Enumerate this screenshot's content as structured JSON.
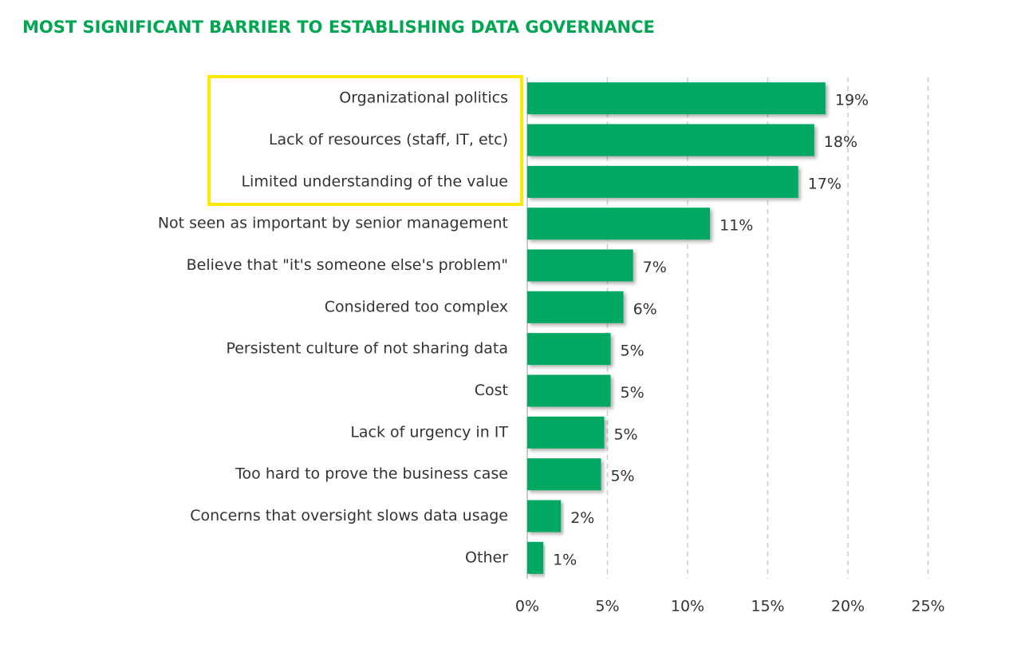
{
  "chart_data": {
    "type": "hbar",
    "title": "MOST SIGNIFICANT BARRIER TO ESTABLISHING DATA GOVERNANCE",
    "categories": [
      "Organizational politics",
      "Lack of resources (staff, IT, etc)",
      "Limited understanding of the value",
      "Not seen as important by senior management",
      "Believe that \"it's someone else's problem\"",
      "Considered too complex",
      "Persistent culture of not sharing data",
      "Cost",
      "Lack of urgency in IT",
      "Too hard to prove the business case",
      "Concerns that oversight slows data usage",
      "Other"
    ],
    "values": [
      18.6,
      17.9,
      16.9,
      11.4,
      6.6,
      6.0,
      5.2,
      5.2,
      4.8,
      4.6,
      2.1,
      1.0
    ],
    "value_labels": [
      "19%",
      "18%",
      "17%",
      "11%",
      "7%",
      "6%",
      "5%",
      "5%",
      "5%",
      "5%",
      "2%",
      "1%"
    ],
    "color": "#00a862",
    "xlim": [
      0,
      25
    ],
    "xticks": [
      {
        "value": 0,
        "label": "0%"
      },
      {
        "value": 5,
        "label": "5%"
      },
      {
        "value": 10,
        "label": "10%"
      },
      {
        "value": 15,
        "label": "15%"
      },
      {
        "value": 20,
        "label": "20%"
      },
      {
        "value": 25,
        "label": "25%"
      }
    ],
    "grid": true
  }
}
